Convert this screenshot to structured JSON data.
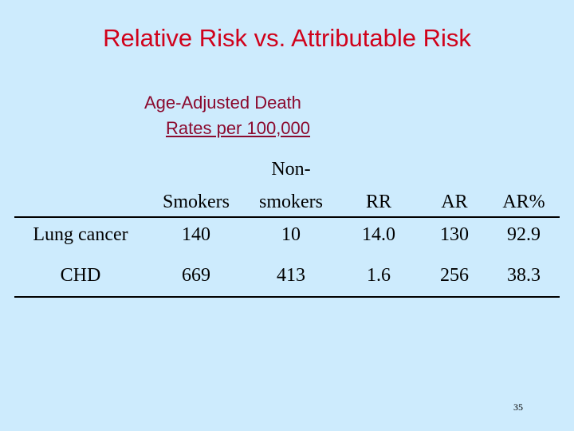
{
  "title": "Relative Risk vs. Attributable Risk",
  "subtitle": {
    "lines": [
      "Age-Adjusted Death",
      "Rates per 100,000"
    ]
  },
  "table": {
    "header": [
      "",
      "Smokers",
      {
        "lines": [
          "Non-",
          "smokers"
        ]
      },
      "RR",
      "AR",
      "AR%"
    ],
    "rows": [
      [
        "Lung cancer",
        "140",
        "10",
        "14.0",
        "130",
        "92.9"
      ],
      [
        "CHD",
        "669",
        "413",
        "1.6",
        "256",
        "38.3"
      ]
    ]
  },
  "page_number": "35"
}
